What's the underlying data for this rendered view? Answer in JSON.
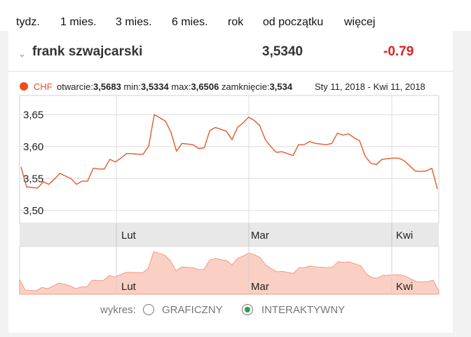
{
  "nav": [
    "tydz.",
    "1 mies.",
    "3 mies.",
    "6 mies.",
    "rok",
    "od początku",
    "więcej"
  ],
  "instrument": {
    "name": "frank szwajcarski",
    "price": "3,5340",
    "change": "-0.79",
    "change_color": "#e02020"
  },
  "stats": {
    "symbol": "CHF",
    "open_label": "otwarcie:",
    "open": "3,5683",
    "min_label": "min:",
    "min": "3,5334",
    "max_label": "max:",
    "max": "3,6506",
    "close_label": "zamknięcie:",
    "close": "3,534",
    "range": "Sty 11, 2018 - Kwi 11, 2018"
  },
  "colors": {
    "line": "#e25a2c",
    "fill": "#fbd0c4",
    "marker": "#ee4b22"
  },
  "chart_data": {
    "type": "line",
    "title": "",
    "x_labels": [
      "Lut",
      "Mar",
      "Kwi"
    ],
    "y_ticks": [
      "3,65",
      "3,60",
      "3,55",
      "3,50"
    ],
    "ylim": [
      3.48,
      3.68
    ],
    "grid": true,
    "series": [
      {
        "name": "CHF",
        "x_unit": "trading day",
        "values": [
          3.568,
          3.537,
          3.536,
          3.535,
          3.545,
          3.541,
          3.549,
          3.558,
          3.554,
          3.55,
          3.541,
          3.546,
          3.546,
          3.566,
          3.565,
          3.565,
          3.58,
          3.576,
          3.582,
          3.589,
          3.589,
          3.588,
          3.588,
          3.601,
          3.65,
          3.645,
          3.64,
          3.623,
          3.593,
          3.605,
          3.604,
          3.603,
          3.597,
          3.598,
          3.625,
          3.63,
          3.627,
          3.624,
          3.611,
          3.63,
          3.637,
          3.646,
          3.641,
          3.633,
          3.611,
          3.6,
          3.591,
          3.592,
          3.589,
          3.586,
          3.603,
          3.603,
          3.608,
          3.605,
          3.604,
          3.603,
          3.605,
          3.621,
          3.618,
          3.62,
          3.614,
          3.609,
          3.585,
          3.574,
          3.572,
          3.58,
          3.581,
          3.582,
          3.582,
          3.578,
          3.57,
          3.562,
          3.561,
          3.562,
          3.566,
          3.534
        ]
      }
    ]
  },
  "navigator": {
    "labels": [
      "Lut",
      "Mar",
      "Kwi"
    ]
  },
  "footer": {
    "label": "wykres:",
    "option1": "GRAFICZNY",
    "option2": "INTERAKTYWNY"
  }
}
